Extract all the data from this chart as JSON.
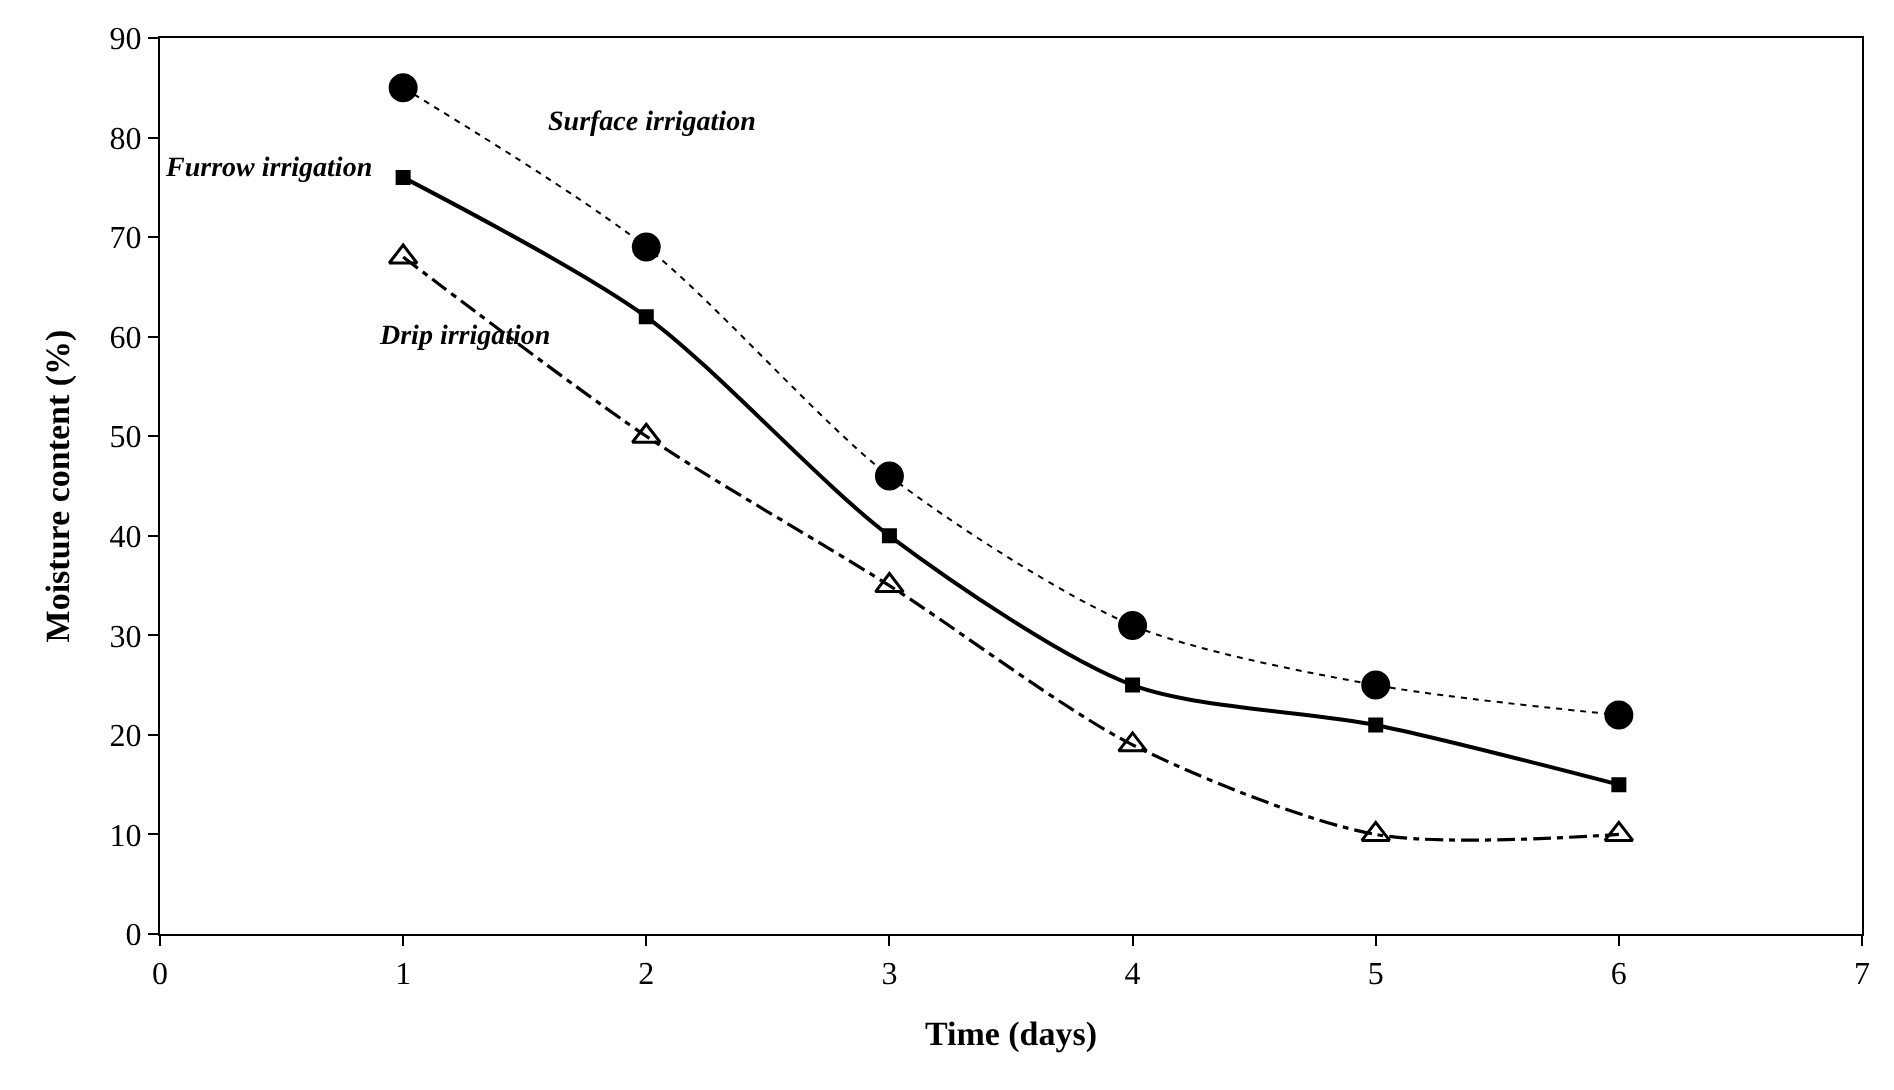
{
  "chart_data": {
    "type": "line",
    "xlabel": "Time (days)",
    "ylabel": "Moisture content (%)",
    "x": [
      1,
      2,
      3,
      4,
      5,
      6
    ],
    "xlim": [
      0,
      7
    ],
    "xticks": [
      0,
      1,
      2,
      3,
      4,
      5,
      6,
      7
    ],
    "ylim": [
      0,
      90
    ],
    "yticks": [
      0,
      10,
      20,
      30,
      40,
      50,
      60,
      70,
      80,
      90
    ],
    "legend": false,
    "series": [
      {
        "name": "Surface irrigation",
        "color": "#000000",
        "values": [
          85,
          69,
          46,
          31,
          25,
          22
        ],
        "marker": "circle",
        "line_style": "dotted"
      },
      {
        "name": "Furrow irrigation",
        "color": "#000000",
        "values": [
          76,
          62,
          40,
          25,
          21,
          15
        ],
        "marker": "square",
        "line_style": "solid"
      },
      {
        "name": "Drip irrigation",
        "color": "#000000",
        "values": [
          68,
          50,
          35,
          19,
          10,
          10
        ],
        "marker": "triangle",
        "line_style": "dashed"
      }
    ]
  }
}
